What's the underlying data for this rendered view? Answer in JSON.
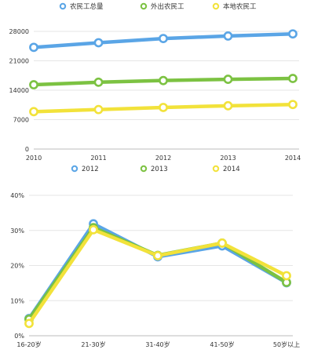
{
  "chart_data": [
    {
      "type": "line",
      "title": "",
      "xlabel": "",
      "ylabel": "",
      "categories": [
        "2010",
        "2011",
        "2012",
        "2013",
        "2014"
      ],
      "ylim": [
        0,
        28000
      ],
      "yticks": [
        "0",
        "7000",
        "14000",
        "21000",
        "28000"
      ],
      "grid": true,
      "legend_position": "top",
      "series": [
        {
          "name": "农民工总量",
          "color": "#5aa5e6",
          "values": [
            24200,
            25300,
            26300,
            26900,
            27400
          ]
        },
        {
          "name": "外出农民工",
          "color": "#7cc242",
          "values": [
            15300,
            15900,
            16300,
            16600,
            16800
          ]
        },
        {
          "name": "本地农民工",
          "color": "#f2e23a",
          "values": [
            8900,
            9400,
            9900,
            10300,
            10600
          ]
        }
      ]
    },
    {
      "type": "line",
      "title": "",
      "xlabel": "",
      "ylabel": "",
      "categories": [
        "16-20岁",
        "21-30岁",
        "31-40岁",
        "41-50岁",
        "50岁以上"
      ],
      "ylim": [
        0,
        40
      ],
      "yticks": [
        "0%",
        "10%",
        "20%",
        "30%",
        "40%"
      ],
      "grid": true,
      "legend_position": "top",
      "series": [
        {
          "name": "2012",
          "color": "#5aa5e6",
          "values": [
            4.9,
            31.9,
            22.5,
            25.6,
            15.1
          ]
        },
        {
          "name": "2013",
          "color": "#7cc242",
          "values": [
            4.7,
            30.8,
            22.9,
            26.4,
            15.2
          ]
        },
        {
          "name": "2014",
          "color": "#f2e23a",
          "values": [
            3.5,
            30.2,
            22.8,
            26.4,
            17.1
          ]
        }
      ]
    }
  ]
}
